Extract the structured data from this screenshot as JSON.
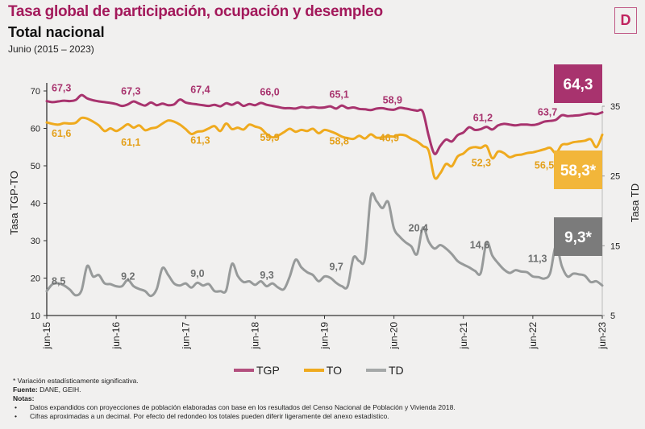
{
  "header": {
    "title": "Tasa global de participación, ocupación y desempleo",
    "subtitle": "Total nacional",
    "period": "Junio (2015 – 2023)",
    "logo_glyph": "D"
  },
  "chart_data": {
    "type": "line",
    "title": "Tasa global de participación, ocupación y desempleo",
    "subtitle": "Total nacional — Junio (2015 – 2023)",
    "ylabel_left": "Tasa TGP-TO",
    "ylabel_right": "Tasa TD",
    "ylim_left": [
      10,
      70
    ],
    "ylim_right": [
      5,
      35
    ],
    "yticks_left": [
      "10",
      "20",
      "30",
      "40",
      "50",
      "60",
      "70"
    ],
    "yticks_right": [
      "5",
      "15",
      "25",
      "35"
    ],
    "x_start": "jun-15",
    "x_end": "jun-23",
    "x_frequency": "monthly",
    "xticks": [
      "jun-15",
      "jun-16",
      "jun-17",
      "jun-18",
      "jun-19",
      "jun-20",
      "jun-21",
      "jun-22",
      "jun-23"
    ],
    "grid": false,
    "legend_position": "bottom",
    "series": [
      {
        "name": "TGP",
        "axis": "left",
        "color": "#a8336e",
        "values": [
          67.3,
          67.0,
          67.2,
          67.4,
          67.3,
          67.6,
          68.9,
          68.0,
          67.5,
          67.2,
          67.0,
          66.8,
          66.5,
          66.0,
          66.4,
          67.2,
          66.6,
          66.1,
          66.9,
          66.2,
          66.6,
          66.2,
          66.4,
          67.7,
          66.9,
          66.6,
          66.4,
          66.2,
          66.0,
          66.3,
          65.9,
          66.7,
          66.3,
          66.9,
          66.0,
          66.5,
          66.2,
          66.8,
          66.3,
          66.0,
          65.7,
          65.4,
          65.4,
          65.3,
          65.7,
          65.5,
          65.7,
          65.5,
          65.6,
          65.9,
          65.3,
          66.1,
          65.4,
          65.6,
          65.2,
          65.1,
          64.9,
          65.3,
          65.4,
          65.1,
          65.0,
          65.5,
          65.3,
          65.0,
          64.7,
          64.4,
          58.0,
          53.2,
          55.3,
          57.0,
          56.5,
          58.2,
          58.9,
          60.3,
          59.6,
          59.8,
          60.4,
          59.7,
          60.8,
          61.2,
          61.0,
          60.8,
          61.0,
          61.0,
          60.9,
          61.2,
          61.8,
          62.0,
          62.3,
          63.5,
          63.3,
          63.4,
          63.5,
          63.8,
          64.0,
          63.8,
          64.3
        ]
      },
      {
        "name": "TO",
        "axis": "left",
        "color": "#efaa1e",
        "values": [
          61.6,
          61.2,
          61.0,
          61.4,
          61.3,
          61.5,
          62.8,
          62.6,
          61.8,
          60.8,
          59.3,
          60.0,
          59.3,
          60.1,
          61.1,
          60.2,
          60.8,
          59.5,
          60.0,
          60.3,
          61.3,
          62.1,
          61.8,
          61.0,
          59.8,
          58.5,
          59.1,
          59.3,
          60.0,
          60.6,
          59.3,
          61.3,
          59.8,
          60.2,
          59.7,
          61.0,
          60.5,
          60.0,
          58.5,
          57.6,
          58.1,
          59.0,
          59.9,
          59.1,
          59.6,
          59.3,
          59.9,
          58.7,
          59.6,
          59.2,
          58.6,
          57.8,
          57.4,
          57.2,
          58.0,
          57.3,
          58.4,
          57.5,
          57.6,
          57.9,
          57.8,
          58.3,
          58.1,
          57.2,
          56.5,
          55.3,
          54.0,
          46.9,
          48.0,
          50.5,
          49.9,
          52.5,
          53.3,
          54.6,
          55.0,
          54.8,
          55.3,
          52.0,
          53.8,
          53.4,
          52.3,
          52.8,
          53.0,
          53.4,
          53.6,
          54.0,
          54.4,
          54.8,
          53.4,
          55.6,
          55.8,
          56.3,
          56.5,
          56.7,
          57.1,
          55.0,
          58.3
        ]
      },
      {
        "name": "TD",
        "axis": "right",
        "color": "#979a9a",
        "values": [
          8.5,
          9.5,
          9.6,
          9.3,
          8.7,
          7.9,
          8.6,
          12.1,
          10.6,
          10.8,
          9.6,
          9.5,
          9.2,
          9.2,
          10.1,
          9.2,
          8.8,
          8.5,
          7.8,
          8.8,
          11.8,
          10.8,
          9.6,
          9.3,
          9.6,
          9.0,
          9.7,
          9.3,
          9.5,
          8.5,
          8.5,
          8.6,
          12.4,
          10.7,
          9.8,
          9.9,
          9.4,
          9.9,
          9.2,
          9.6,
          9.0,
          8.8,
          10.6,
          13.0,
          11.9,
          11.2,
          10.8,
          9.9,
          10.6,
          10.4,
          9.7,
          9.2,
          9.2,
          13.3,
          12.8,
          13.2,
          22.0,
          21.4,
          20.4,
          21.3,
          17.5,
          16.3,
          15.5,
          14.9,
          13.8,
          17.6,
          15.6,
          14.6,
          15.1,
          14.6,
          13.8,
          12.8,
          12.3,
          11.9,
          11.4,
          11.1,
          15.5,
          13.6,
          12.5,
          11.6,
          11.1,
          11.5,
          11.3,
          11.2,
          10.6,
          10.5,
          10.3,
          11.1,
          15.0,
          12.1,
          10.6,
          11.0,
          10.9,
          10.7,
          9.8,
          9.9,
          9.3
        ]
      }
    ],
    "annotations": [
      {
        "series": "TGP",
        "label": "67,3",
        "x": "jun-15"
      },
      {
        "series": "TGP",
        "label": "67,3",
        "x": "jun-16"
      },
      {
        "series": "TGP",
        "label": "67,4",
        "x": "jun-17"
      },
      {
        "series": "TGP",
        "label": "66,0",
        "x": "jun-18"
      },
      {
        "series": "TGP",
        "label": "65,1",
        "x": "jun-19"
      },
      {
        "series": "TGP",
        "label": "58,9",
        "x": "jun-20"
      },
      {
        "series": "TGP",
        "label": "61,2",
        "x": "jun-21"
      },
      {
        "series": "TGP",
        "label": "63,7",
        "x": "jun-22"
      },
      {
        "series": "TO",
        "label": "61,6",
        "x": "jun-15"
      },
      {
        "series": "TO",
        "label": "61,1",
        "x": "jun-16"
      },
      {
        "series": "TO",
        "label": "61,3",
        "x": "jun-17"
      },
      {
        "series": "TO",
        "label": "59,9",
        "x": "jun-18"
      },
      {
        "series": "TO",
        "label": "58,8",
        "x": "jun-19"
      },
      {
        "series": "TO",
        "label": "46,9",
        "x": "jun-20"
      },
      {
        "series": "TO",
        "label": "52,3",
        "x": "jun-21"
      },
      {
        "series": "TO",
        "label": "56,5",
        "x": "jun-22"
      },
      {
        "series": "TD",
        "label": "8,5",
        "x": "jun-15"
      },
      {
        "series": "TD",
        "label": "9,2",
        "x": "jun-16"
      },
      {
        "series": "TD",
        "label": "9,0",
        "x": "jun-17"
      },
      {
        "series": "TD",
        "label": "9,3",
        "x": "jun-18"
      },
      {
        "series": "TD",
        "label": "9,7",
        "x": "jun-19"
      },
      {
        "series": "TD",
        "label": "20,4",
        "x": "jun-20"
      },
      {
        "series": "TD",
        "label": "14,6",
        "x": "jun-21"
      },
      {
        "series": "TD",
        "label": "11,3",
        "x": "jun-22"
      }
    ],
    "badges": [
      {
        "series": "TGP",
        "label": "64,3",
        "color": "#a8336e",
        "x": "jun-23"
      },
      {
        "series": "TO",
        "label": "58,3*",
        "color": "#f2b63a",
        "x": "jun-23"
      },
      {
        "series": "TD",
        "label": "9,3*",
        "color": "#7b7b7b",
        "x": "jun-23"
      }
    ]
  },
  "legend": [
    {
      "label": "TGP",
      "color": "#b34f7e"
    },
    {
      "label": "TO",
      "color": "#efaa1e"
    },
    {
      "label": "TD",
      "color": "#a5a8a8"
    }
  ],
  "footnotes": {
    "significance": "* Variación estadísticamente significativa.",
    "source_label": "Fuente:",
    "source_value": " DANE, GEIH.",
    "notes_label": "Notas:",
    "bullet": "•",
    "notes": [
      "Datos expandidos con proyecciones de población elaboradas con base en los resultados del Censo Nacional de Población y Vivienda 2018.",
      "Cifras aproximadas a un decimal. Por efecto del redondeo los totales pueden diferir ligeramente del anexo estadístico."
    ]
  }
}
